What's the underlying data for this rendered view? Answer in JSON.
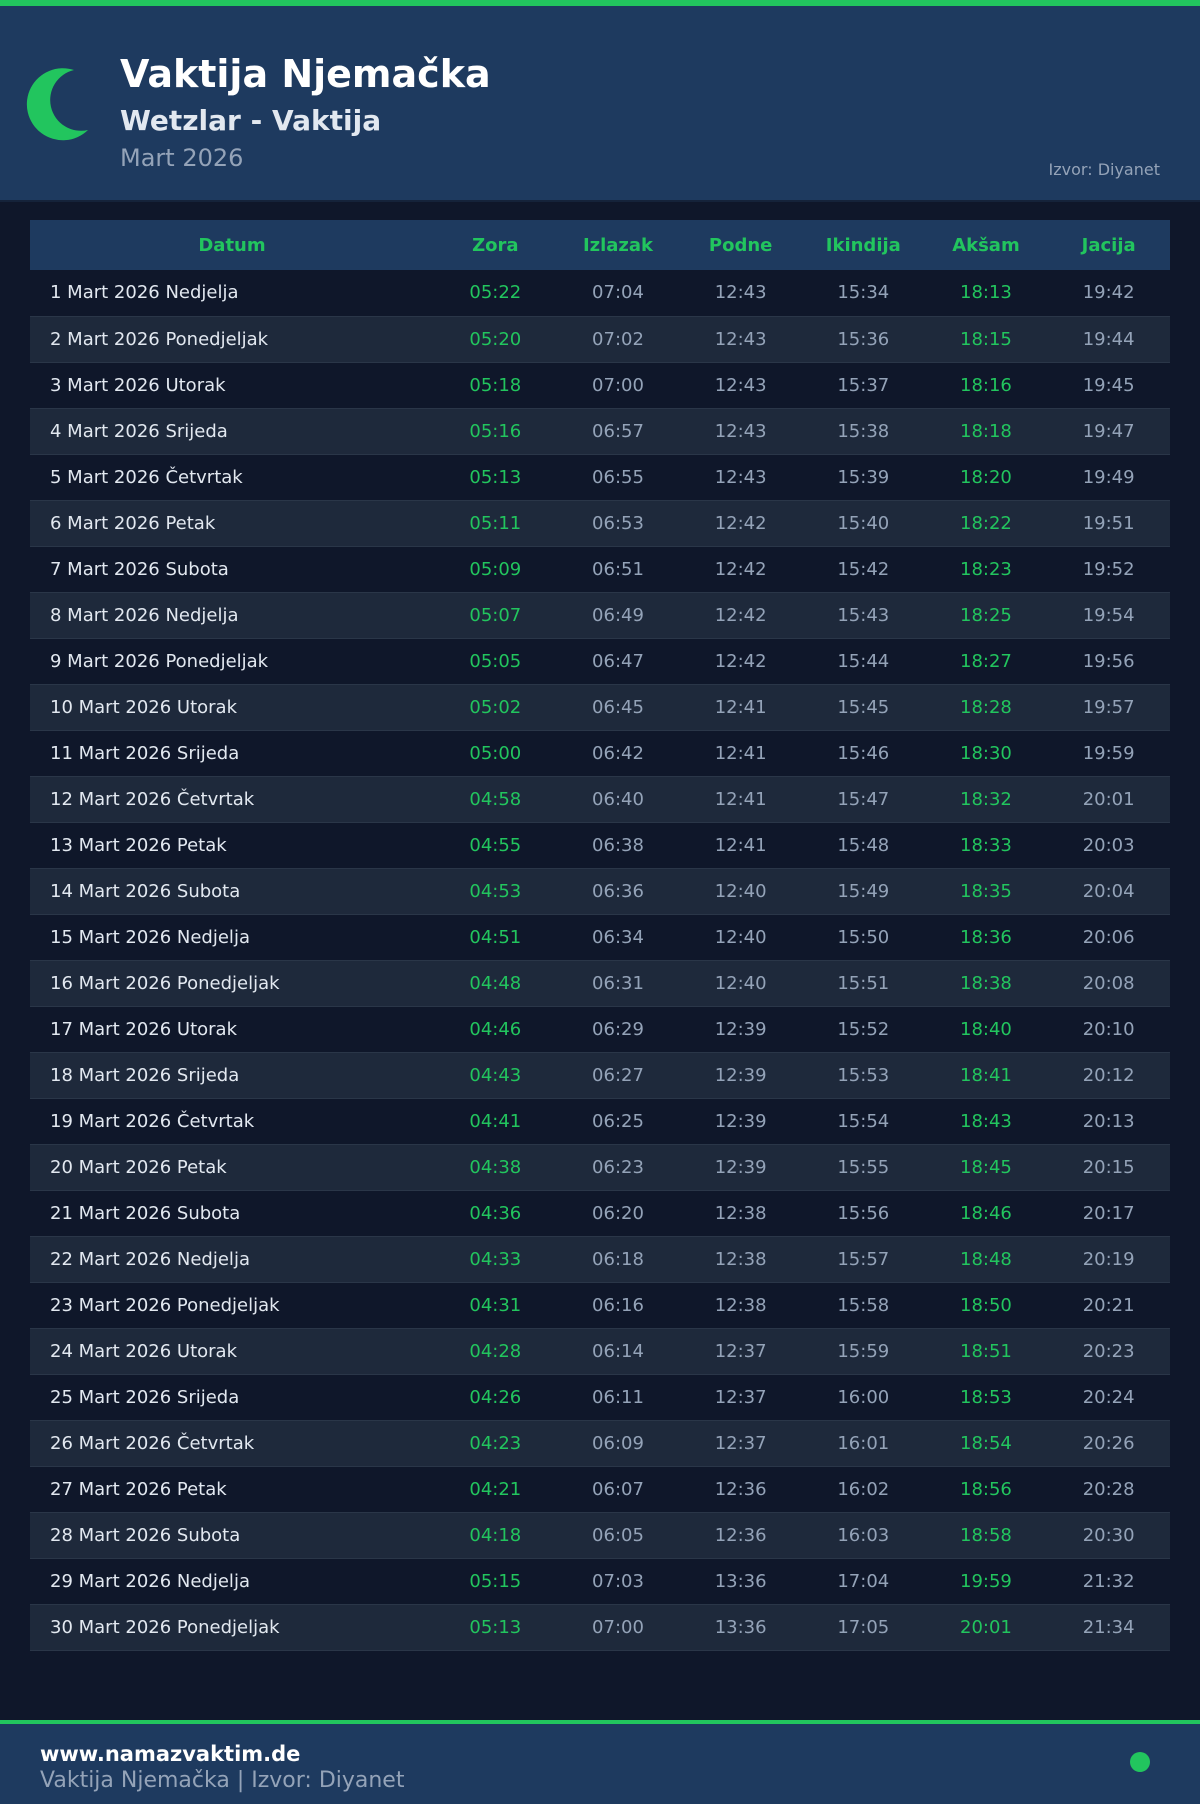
{
  "header": {
    "title": "Vaktija Njemačka",
    "subtitle": "Wetzlar - Vaktija",
    "month": "Mart 2026",
    "source": "Izvor: Diyanet",
    "icon": "crescent-moon-icon"
  },
  "colors": {
    "accent": "#22c55e",
    "header_bg": "#1e3a5f",
    "page_bg": "#0f172a"
  },
  "table": {
    "columns": [
      "Datum",
      "Zora",
      "Izlazak",
      "Podne",
      "Ikindija",
      "Akšam",
      "Jacija"
    ],
    "rows": [
      [
        "1 Mart 2026 Nedjelja",
        "05:22",
        "07:04",
        "12:43",
        "15:34",
        "18:13",
        "19:42"
      ],
      [
        "2 Mart 2026 Ponedjeljak",
        "05:20",
        "07:02",
        "12:43",
        "15:36",
        "18:15",
        "19:44"
      ],
      [
        "3 Mart 2026 Utorak",
        "05:18",
        "07:00",
        "12:43",
        "15:37",
        "18:16",
        "19:45"
      ],
      [
        "4 Mart 2026 Srijeda",
        "05:16",
        "06:57",
        "12:43",
        "15:38",
        "18:18",
        "19:47"
      ],
      [
        "5 Mart 2026 Četvrtak",
        "05:13",
        "06:55",
        "12:43",
        "15:39",
        "18:20",
        "19:49"
      ],
      [
        "6 Mart 2026 Petak",
        "05:11",
        "06:53",
        "12:42",
        "15:40",
        "18:22",
        "19:51"
      ],
      [
        "7 Mart 2026 Subota",
        "05:09",
        "06:51",
        "12:42",
        "15:42",
        "18:23",
        "19:52"
      ],
      [
        "8 Mart 2026 Nedjelja",
        "05:07",
        "06:49",
        "12:42",
        "15:43",
        "18:25",
        "19:54"
      ],
      [
        "9 Mart 2026 Ponedjeljak",
        "05:05",
        "06:47",
        "12:42",
        "15:44",
        "18:27",
        "19:56"
      ],
      [
        "10 Mart 2026 Utorak",
        "05:02",
        "06:45",
        "12:41",
        "15:45",
        "18:28",
        "19:57"
      ],
      [
        "11 Mart 2026 Srijeda",
        "05:00",
        "06:42",
        "12:41",
        "15:46",
        "18:30",
        "19:59"
      ],
      [
        "12 Mart 2026 Četvrtak",
        "04:58",
        "06:40",
        "12:41",
        "15:47",
        "18:32",
        "20:01"
      ],
      [
        "13 Mart 2026 Petak",
        "04:55",
        "06:38",
        "12:41",
        "15:48",
        "18:33",
        "20:03"
      ],
      [
        "14 Mart 2026 Subota",
        "04:53",
        "06:36",
        "12:40",
        "15:49",
        "18:35",
        "20:04"
      ],
      [
        "15 Mart 2026 Nedjelja",
        "04:51",
        "06:34",
        "12:40",
        "15:50",
        "18:36",
        "20:06"
      ],
      [
        "16 Mart 2026 Ponedjeljak",
        "04:48",
        "06:31",
        "12:40",
        "15:51",
        "18:38",
        "20:08"
      ],
      [
        "17 Mart 2026 Utorak",
        "04:46",
        "06:29",
        "12:39",
        "15:52",
        "18:40",
        "20:10"
      ],
      [
        "18 Mart 2026 Srijeda",
        "04:43",
        "06:27",
        "12:39",
        "15:53",
        "18:41",
        "20:12"
      ],
      [
        "19 Mart 2026 Četvrtak",
        "04:41",
        "06:25",
        "12:39",
        "15:54",
        "18:43",
        "20:13"
      ],
      [
        "20 Mart 2026 Petak",
        "04:38",
        "06:23",
        "12:39",
        "15:55",
        "18:45",
        "20:15"
      ],
      [
        "21 Mart 2026 Subota",
        "04:36",
        "06:20",
        "12:38",
        "15:56",
        "18:46",
        "20:17"
      ],
      [
        "22 Mart 2026 Nedjelja",
        "04:33",
        "06:18",
        "12:38",
        "15:57",
        "18:48",
        "20:19"
      ],
      [
        "23 Mart 2026 Ponedjeljak",
        "04:31",
        "06:16",
        "12:38",
        "15:58",
        "18:50",
        "20:21"
      ],
      [
        "24 Mart 2026 Utorak",
        "04:28",
        "06:14",
        "12:37",
        "15:59",
        "18:51",
        "20:23"
      ],
      [
        "25 Mart 2026 Srijeda",
        "04:26",
        "06:11",
        "12:37",
        "16:00",
        "18:53",
        "20:24"
      ],
      [
        "26 Mart 2026 Četvrtak",
        "04:23",
        "06:09",
        "12:37",
        "16:01",
        "18:54",
        "20:26"
      ],
      [
        "27 Mart 2026 Petak",
        "04:21",
        "06:07",
        "12:36",
        "16:02",
        "18:56",
        "20:28"
      ],
      [
        "28 Mart 2026 Subota",
        "04:18",
        "06:05",
        "12:36",
        "16:03",
        "18:58",
        "20:30"
      ],
      [
        "29 Mart 2026 Nedjelja",
        "05:15",
        "07:03",
        "13:36",
        "17:04",
        "19:59",
        "21:32"
      ],
      [
        "30 Mart 2026 Ponedjeljak",
        "05:13",
        "07:00",
        "13:36",
        "17:05",
        "20:01",
        "21:34"
      ]
    ]
  },
  "footer": {
    "site": "www.namazvaktim.de",
    "text": "Vaktija Njemačka | Izvor: Diyanet",
    "status_icon": "status-dot-icon"
  }
}
